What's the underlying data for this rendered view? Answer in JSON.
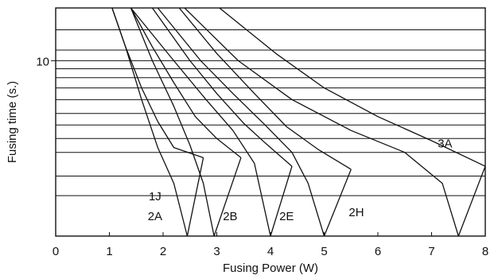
{
  "chart_data": {
    "type": "line",
    "title": "",
    "xlabel": "Fusing Power (W)",
    "ylabel": "Fusing time (s.)",
    "x_ticks": [
      0,
      1,
      2,
      3,
      4,
      5,
      6,
      7,
      8
    ],
    "x_tick_labels": [
      "0",
      "1",
      "2",
      "3",
      "4",
      "5",
      "6",
      "7",
      "8"
    ],
    "y_tick_label": "10",
    "y_tick_value": 10,
    "xlim": [
      0,
      8
    ],
    "ylim": [
      1,
      20
    ],
    "y_scale": "log",
    "grid": "horizontal lines only",
    "y_gridlines": [
      1.7,
      2.2,
      3,
      3.6,
      4.3,
      5,
      6,
      7,
      8,
      9,
      10,
      11.5,
      15,
      20
    ],
    "series": [
      {
        "name": "1J 2A",
        "upper": [
          [
            1.05,
            20
          ],
          [
            1.3,
            12
          ],
          [
            1.6,
            7
          ],
          [
            1.9,
            4.5
          ],
          [
            2.2,
            3.2
          ],
          [
            2.75,
            2.8
          ]
        ],
        "lower": [
          [
            1.05,
            20
          ],
          [
            1.3,
            12
          ],
          [
            1.6,
            6
          ],
          [
            1.9,
            3.2
          ],
          [
            2.2,
            2
          ],
          [
            2.45,
            1
          ]
        ],
        "tail": [
          [
            2.45,
            1
          ],
          [
            2.75,
            2.8
          ]
        ]
      },
      {
        "name": "2B",
        "upper": [
          [
            1.4,
            20
          ],
          [
            1.8,
            12
          ],
          [
            2.2,
            7.5
          ],
          [
            2.6,
            4.8
          ],
          [
            3,
            3.6
          ],
          [
            3.45,
            2.8
          ]
        ],
        "lower": [
          [
            1.4,
            20
          ],
          [
            1.8,
            10
          ],
          [
            2.2,
            5.5
          ],
          [
            2.5,
            3.3
          ],
          [
            2.75,
            2
          ],
          [
            2.95,
            1
          ]
        ],
        "tail": [
          [
            2.95,
            1
          ],
          [
            3.45,
            2.8
          ]
        ]
      },
      {
        "name": "2E",
        "upper": [
          [
            1.8,
            20
          ],
          [
            2.5,
            10
          ],
          [
            3,
            6.5
          ],
          [
            3.5,
            4.4
          ],
          [
            3.9,
            3.4
          ],
          [
            4.4,
            2.5
          ]
        ],
        "lower": [
          [
            1.4,
            20
          ],
          [
            2.2,
            10
          ],
          [
            2.8,
            6
          ],
          [
            3.3,
            4
          ],
          [
            3.7,
            2.6
          ],
          [
            4,
            1
          ]
        ],
        "tail": [
          [
            4,
            1
          ],
          [
            4.4,
            2.5
          ]
        ]
      },
      {
        "name": "2H",
        "upper": [
          [
            2.3,
            20
          ],
          [
            3,
            11
          ],
          [
            3.7,
            6.5
          ],
          [
            4.3,
            4.2
          ],
          [
            4.9,
            3.1
          ],
          [
            5.5,
            2.4
          ]
        ],
        "lower": [
          [
            1.9,
            20
          ],
          [
            2.7,
            10
          ],
          [
            3.3,
            6.5
          ],
          [
            3.9,
            4.3
          ],
          [
            4.4,
            3
          ],
          [
            4.7,
            2
          ],
          [
            5,
            1
          ]
        ],
        "tail": [
          [
            5,
            1
          ],
          [
            5.5,
            2.4
          ]
        ]
      },
      {
        "name": "3A",
        "upper": [
          [
            3.05,
            20
          ],
          [
            4.1,
            11
          ],
          [
            5,
            7
          ],
          [
            6,
            4.8
          ],
          [
            7,
            3.5
          ],
          [
            8,
            2.5
          ]
        ],
        "lower": [
          [
            2.4,
            20
          ],
          [
            3.4,
            10
          ],
          [
            4.4,
            6
          ],
          [
            5.5,
            4
          ],
          [
            6.5,
            3
          ],
          [
            7.2,
            2
          ],
          [
            7.5,
            1
          ]
        ],
        "tail": [
          [
            7.5,
            1
          ],
          [
            8,
            2.5
          ]
        ]
      }
    ],
    "curve_labels": [
      {
        "text": "1J",
        "x": 1.85,
        "y": 1.6
      },
      {
        "text": "2A",
        "x": 1.85,
        "y": 1.23
      },
      {
        "text": "2B",
        "x": 3.25,
        "y": 1.23
      },
      {
        "text": "2E",
        "x": 4.3,
        "y": 1.23
      },
      {
        "text": "2H",
        "x": 5.6,
        "y": 1.3
      },
      {
        "text": "3A",
        "x": 7.25,
        "y": 3.2
      }
    ]
  }
}
